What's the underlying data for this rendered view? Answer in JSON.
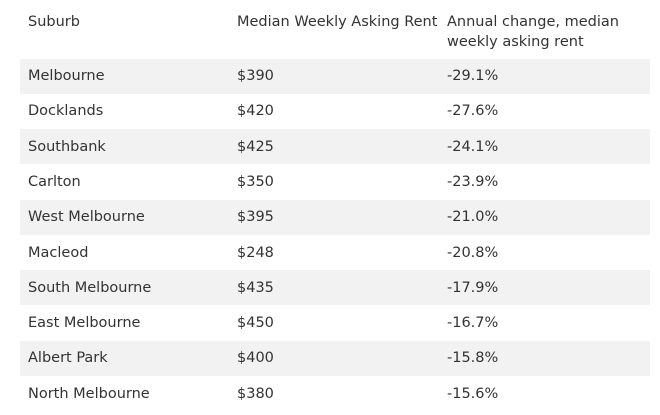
{
  "table": {
    "header": [
      "Suburb",
      "Median Weekly Asking Rent",
      "Annual change, median weekly asking rent"
    ],
    "rows": [
      [
        "Melbourne",
        "$390",
        "-29.1%"
      ],
      [
        "Docklands",
        "$420",
        "-27.6%"
      ],
      [
        "Southbank",
        "$425",
        "-24.1%"
      ],
      [
        "Carlton",
        "$350",
        "-23.9%"
      ],
      [
        "West Melbourne",
        "$395",
        "-21.0%"
      ],
      [
        "Macleod",
        "$248",
        "-20.8%"
      ],
      [
        "South Melbourne",
        "$435",
        "-17.9%"
      ],
      [
        "East Melbourne",
        "$450",
        "-16.7%"
      ],
      [
        "Albert Park",
        "$400",
        "-15.8%"
      ],
      [
        "North Melbourne",
        "$380",
        "-15.6%"
      ]
    ]
  }
}
